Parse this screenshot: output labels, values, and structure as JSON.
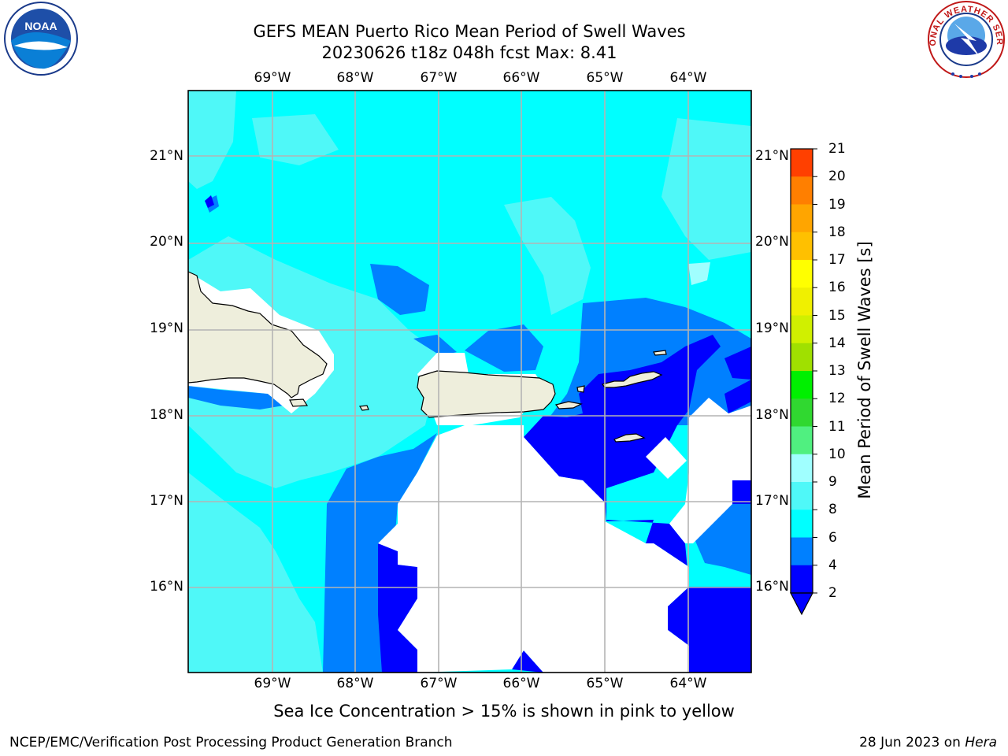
{
  "title_line1": "GEFS MEAN Puerto Rico Mean Period of Swell Waves",
  "title_line2": "20230626 t18z 048h fcst   Max: 8.41",
  "map": {
    "lon_labels": [
      "69°W",
      "68°W",
      "67°W",
      "66°W",
      "65°W",
      "64°W"
    ],
    "lat_labels": [
      "21°N",
      "20°N",
      "19°N",
      "18°N",
      "17°N",
      "16°N"
    ]
  },
  "colorbar": {
    "label": "Mean Period of Swell Waves [s]",
    "ticks": [
      "21",
      "20",
      "19",
      "18",
      "17",
      "16",
      "15",
      "14",
      "13",
      "12",
      "11",
      "10",
      "9",
      "8",
      "6",
      "4",
      "2"
    ],
    "colors": {
      "c2": "#0000ff",
      "c4": "#0080ff",
      "c6": "#00ffff",
      "c8": "#4ff8f8",
      "c9": "#a0ffff",
      "c10": "#50f080",
      "c11": "#30d830",
      "c12": "#00f000",
      "c13": "#a0e000",
      "c14": "#d0f000",
      "c15": "#f0f000",
      "c16": "#ffff00",
      "c17": "#ffc000",
      "c18": "#ffa500",
      "c19": "#ff7f00",
      "c20": "#ff4000",
      "c21": "#ff1000",
      "land": "#eeeedc",
      "nodata": "#ffffff"
    }
  },
  "note": "Sea Ice Concentration > 15% is shown in pink to yellow",
  "footer_left": "NCEP/EMC/Verification Post Processing Product Generation Branch",
  "footer_right_date": "28 Jun 2023 on",
  "footer_right_host": "Hera",
  "logos": {
    "left_icon": "noaa-logo-icon",
    "left_text": "NOAA",
    "right_icon": "nws-logo-icon",
    "right_text": "NATIONAL WEATHER SERVICE"
  }
}
